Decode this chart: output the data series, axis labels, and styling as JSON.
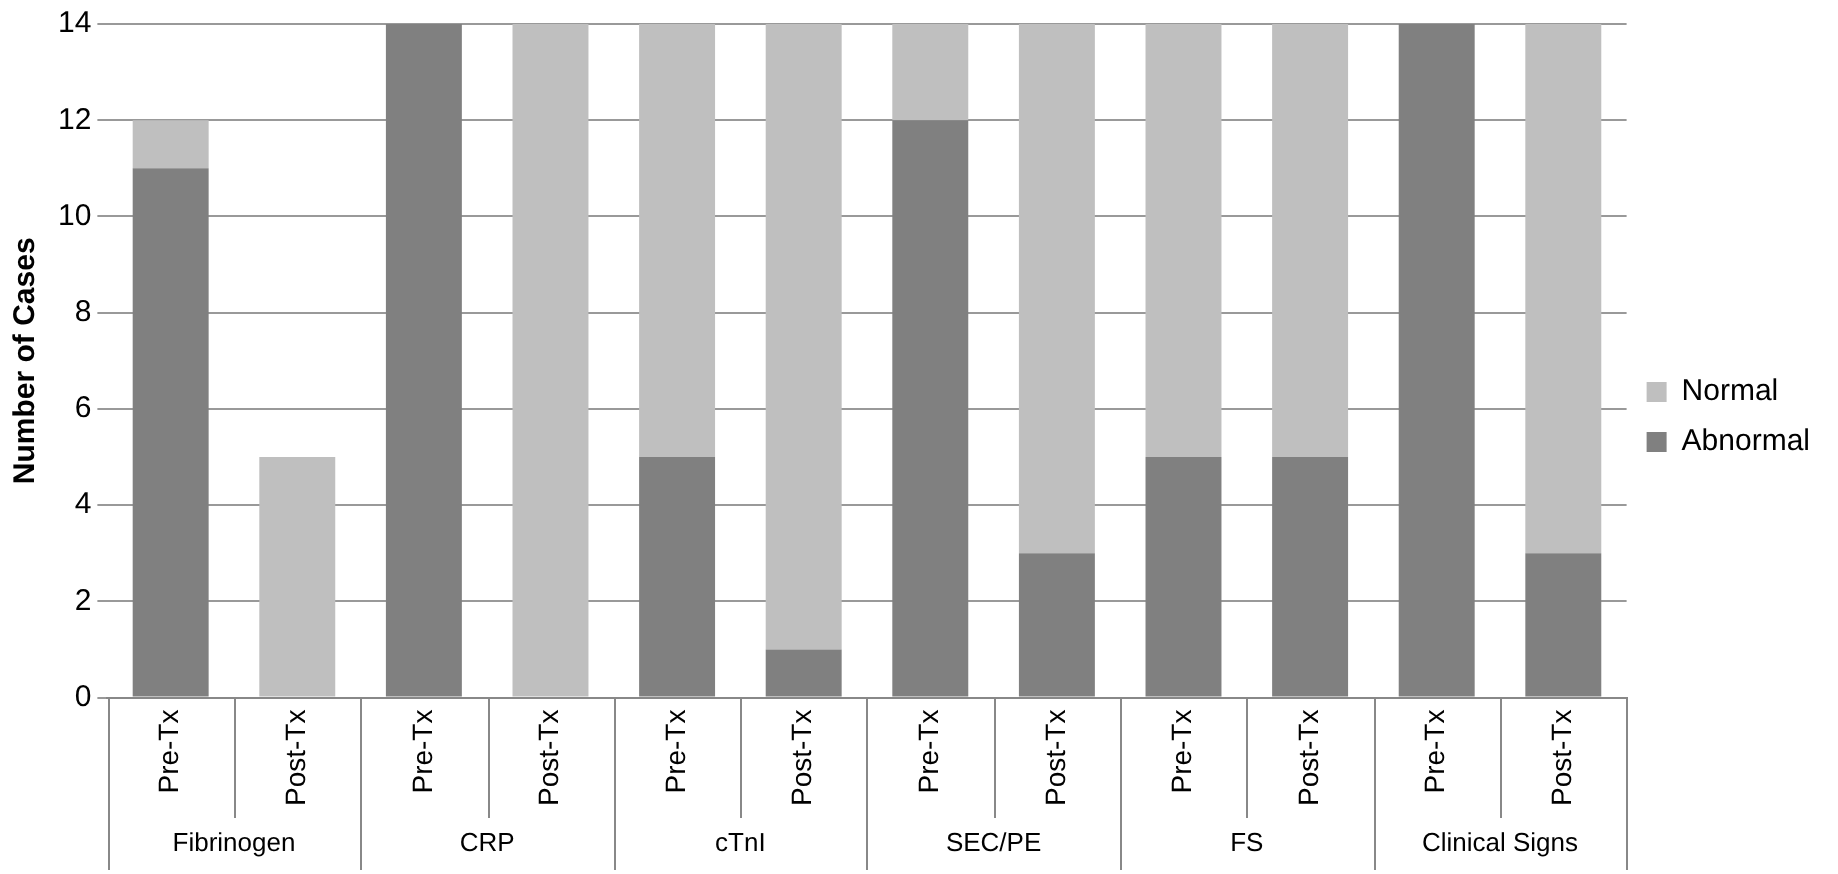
{
  "chart_data": {
    "type": "bar",
    "stacked": true,
    "ylabel": "Number of Cases",
    "categories": [
      "Pre-Tx",
      "Post-Tx",
      "Pre-Tx",
      "Post-Tx",
      "Pre-Tx",
      "Post-Tx",
      "Pre-Tx",
      "Post-Tx",
      "Pre-Tx",
      "Post-Tx",
      "Pre-Tx",
      "Post-Tx"
    ],
    "annotations": [
      "Fibrinogen",
      "CRP",
      "cTnI",
      "SEC/PE",
      "FS",
      "Clinical Signs"
    ],
    "series": [
      {
        "name": "Abnormal",
        "color": "#808080",
        "values": [
          11,
          0,
          14,
          0,
          5,
          1,
          12,
          3,
          5,
          5,
          14,
          3
        ]
      },
      {
        "name": "Normal",
        "color": "#bfbfbf",
        "values": [
          1,
          5,
          0,
          14,
          9,
          13,
          2,
          11,
          9,
          9,
          0,
          11
        ]
      }
    ],
    "ylim": [
      0,
      14
    ],
    "yticks": [
      0,
      2,
      4,
      6,
      8,
      10,
      12,
      14
    ],
    "grid": "y",
    "legend": "right"
  }
}
